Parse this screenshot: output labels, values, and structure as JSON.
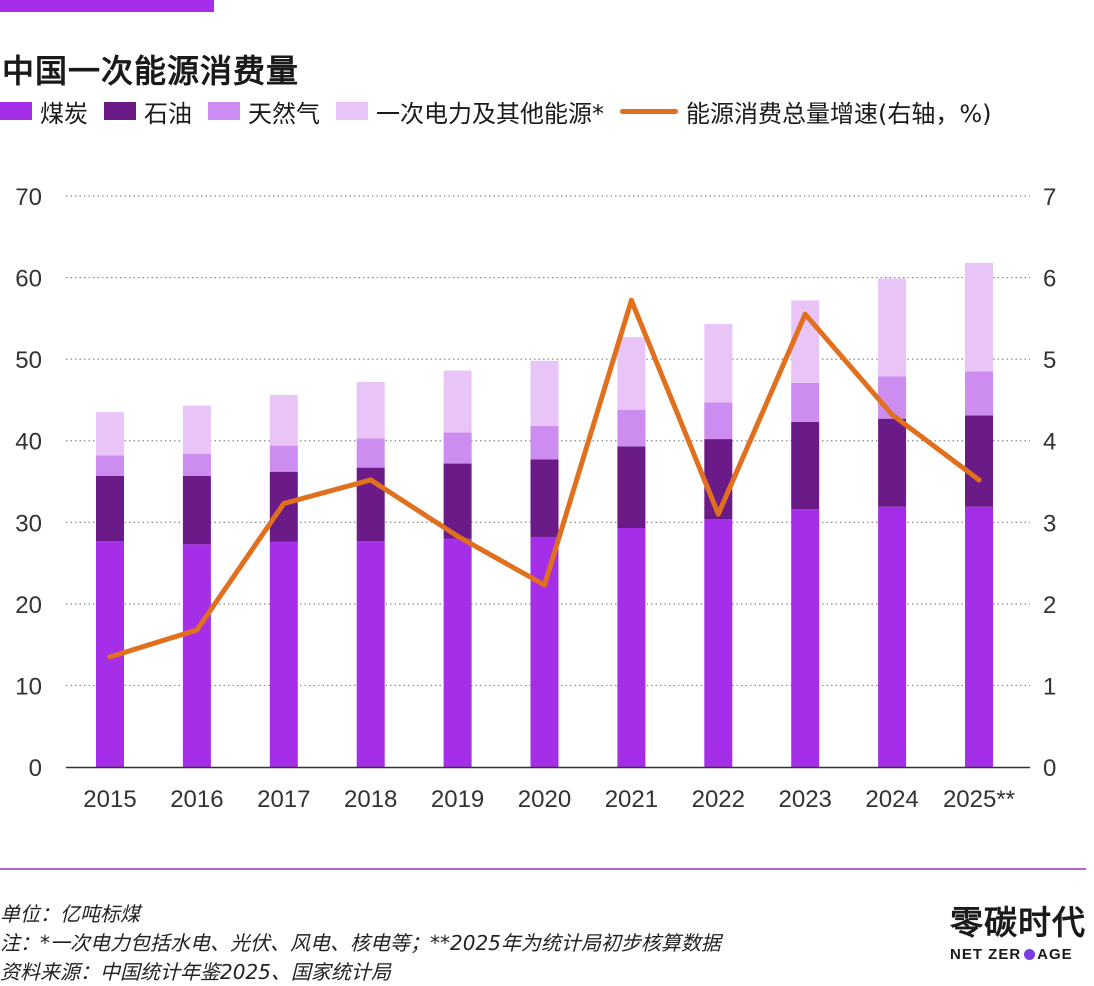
{
  "colors": {
    "accent": "#a52ee8",
    "coal": "#a52ee8",
    "oil": "#6b1b87",
    "gas": "#cd8cf0",
    "primary_electricity": "#e8c4f7",
    "growth_line": "#e0701e",
    "divider": "#b264d8",
    "grid": "#888888",
    "brand_dot": "#7a3fe0"
  },
  "title": "中国一次能源消费量",
  "legend": {
    "coal": "煤炭",
    "oil": "石油",
    "gas": "天然气",
    "primary_electricity": "一次电力及其他能源*",
    "growth": "能源消费总量增速(右轴，%)"
  },
  "chart_data": {
    "type": "bar",
    "stacked": true,
    "categories": [
      "2015",
      "2016",
      "2017",
      "2018",
      "2019",
      "2020",
      "2021",
      "2022",
      "2023",
      "2024",
      "2025**"
    ],
    "series": [
      {
        "name": "煤炭",
        "key": "coal",
        "values": [
          27.7,
          27.3,
          27.6,
          27.7,
          28.0,
          28.2,
          29.3,
          30.4,
          31.6,
          31.9,
          31.9
        ]
      },
      {
        "name": "石油",
        "key": "oil",
        "values": [
          8.0,
          8.4,
          8.6,
          9.0,
          9.2,
          9.5,
          10.0,
          9.8,
          10.7,
          10.8,
          11.2
        ]
      },
      {
        "name": "天然气",
        "key": "gas",
        "values": [
          2.5,
          2.7,
          3.2,
          3.6,
          3.8,
          4.1,
          4.5,
          4.5,
          4.8,
          5.2,
          5.4
        ]
      },
      {
        "name": "一次电力及其他能源*",
        "key": "primary_electricity",
        "values": [
          5.3,
          5.9,
          6.2,
          6.9,
          7.6,
          8.0,
          8.9,
          9.6,
          10.1,
          12.0,
          13.3
        ]
      }
    ],
    "line_series": {
      "name": "能源消费总量增速(右轴，%)",
      "axis": "right",
      "values": [
        1.35,
        1.68,
        3.23,
        3.52,
        2.83,
        2.23,
        5.72,
        3.1,
        5.55,
        4.32,
        3.52
      ]
    },
    "ylim": [
      0,
      70
    ],
    "yticks": [
      "0",
      "10",
      "20",
      "30",
      "40",
      "50",
      "60",
      "70"
    ],
    "y2lim": [
      0,
      7
    ],
    "y2ticks": [
      "0",
      "1",
      "2",
      "3",
      "4",
      "5",
      "6",
      "7"
    ],
    "grid": true,
    "legend_position": "top-left",
    "xlabel": "",
    "ylabel": ""
  },
  "footnotes": {
    "unit": "单位：亿吨标煤",
    "note": "注：*一次电力包括水电、光伏、风电、核电等；**2025年为统计局初步核算数据",
    "source": "资料来源：中国统计年鉴2025、国家统计局"
  },
  "brand": {
    "name_cn": "零碳时代",
    "name_en_left": "NET ZER",
    "name_en_right": "AGE"
  }
}
